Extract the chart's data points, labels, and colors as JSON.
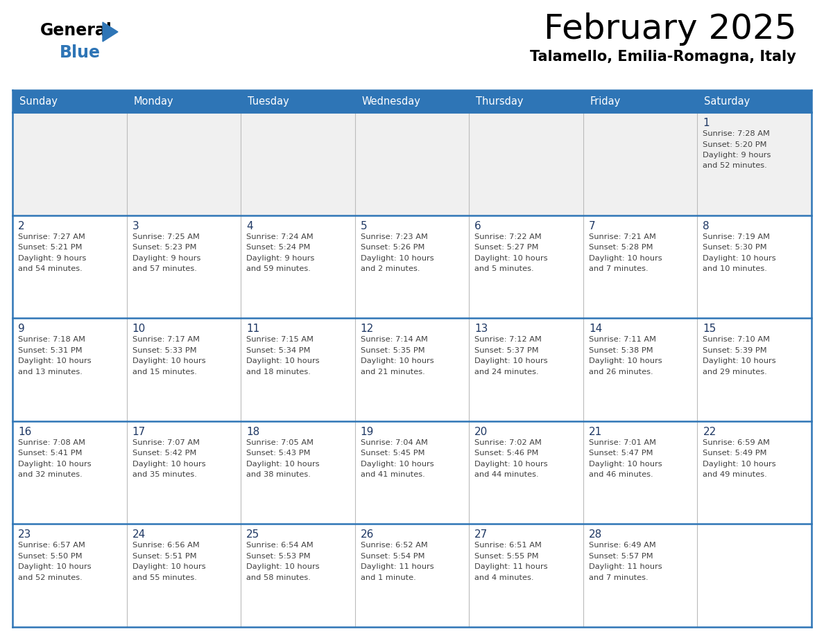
{
  "title": "February 2025",
  "subtitle": "Talamello, Emilia-Romagna, Italy",
  "header_bg_color": "#2E75B6",
  "header_text_color": "#FFFFFF",
  "cell_bg_white": "#FFFFFF",
  "cell_bg_gray": "#F0F0F0",
  "border_color": "#2E75B6",
  "inner_border_color": "#BBBBBB",
  "title_color": "#000000",
  "subtitle_color": "#000000",
  "day_number_color": "#1F3864",
  "cell_text_color": "#404040",
  "days_of_week": [
    "Sunday",
    "Monday",
    "Tuesday",
    "Wednesday",
    "Thursday",
    "Friday",
    "Saturday"
  ],
  "calendar": [
    [
      null,
      null,
      null,
      null,
      null,
      null,
      {
        "day": 1,
        "sunrise": "7:28 AM",
        "sunset": "5:20 PM",
        "daylight": "9 hours\nand 52 minutes."
      }
    ],
    [
      {
        "day": 2,
        "sunrise": "7:27 AM",
        "sunset": "5:21 PM",
        "daylight": "9 hours\nand 54 minutes."
      },
      {
        "day": 3,
        "sunrise": "7:25 AM",
        "sunset": "5:23 PM",
        "daylight": "9 hours\nand 57 minutes."
      },
      {
        "day": 4,
        "sunrise": "7:24 AM",
        "sunset": "5:24 PM",
        "daylight": "9 hours\nand 59 minutes."
      },
      {
        "day": 5,
        "sunrise": "7:23 AM",
        "sunset": "5:26 PM",
        "daylight": "10 hours\nand 2 minutes."
      },
      {
        "day": 6,
        "sunrise": "7:22 AM",
        "sunset": "5:27 PM",
        "daylight": "10 hours\nand 5 minutes."
      },
      {
        "day": 7,
        "sunrise": "7:21 AM",
        "sunset": "5:28 PM",
        "daylight": "10 hours\nand 7 minutes."
      },
      {
        "day": 8,
        "sunrise": "7:19 AM",
        "sunset": "5:30 PM",
        "daylight": "10 hours\nand 10 minutes."
      }
    ],
    [
      {
        "day": 9,
        "sunrise": "7:18 AM",
        "sunset": "5:31 PM",
        "daylight": "10 hours\nand 13 minutes."
      },
      {
        "day": 10,
        "sunrise": "7:17 AM",
        "sunset": "5:33 PM",
        "daylight": "10 hours\nand 15 minutes."
      },
      {
        "day": 11,
        "sunrise": "7:15 AM",
        "sunset": "5:34 PM",
        "daylight": "10 hours\nand 18 minutes."
      },
      {
        "day": 12,
        "sunrise": "7:14 AM",
        "sunset": "5:35 PM",
        "daylight": "10 hours\nand 21 minutes."
      },
      {
        "day": 13,
        "sunrise": "7:12 AM",
        "sunset": "5:37 PM",
        "daylight": "10 hours\nand 24 minutes."
      },
      {
        "day": 14,
        "sunrise": "7:11 AM",
        "sunset": "5:38 PM",
        "daylight": "10 hours\nand 26 minutes."
      },
      {
        "day": 15,
        "sunrise": "7:10 AM",
        "sunset": "5:39 PM",
        "daylight": "10 hours\nand 29 minutes."
      }
    ],
    [
      {
        "day": 16,
        "sunrise": "7:08 AM",
        "sunset": "5:41 PM",
        "daylight": "10 hours\nand 32 minutes."
      },
      {
        "day": 17,
        "sunrise": "7:07 AM",
        "sunset": "5:42 PM",
        "daylight": "10 hours\nand 35 minutes."
      },
      {
        "day": 18,
        "sunrise": "7:05 AM",
        "sunset": "5:43 PM",
        "daylight": "10 hours\nand 38 minutes."
      },
      {
        "day": 19,
        "sunrise": "7:04 AM",
        "sunset": "5:45 PM",
        "daylight": "10 hours\nand 41 minutes."
      },
      {
        "day": 20,
        "sunrise": "7:02 AM",
        "sunset": "5:46 PM",
        "daylight": "10 hours\nand 44 minutes."
      },
      {
        "day": 21,
        "sunrise": "7:01 AM",
        "sunset": "5:47 PM",
        "daylight": "10 hours\nand 46 minutes."
      },
      {
        "day": 22,
        "sunrise": "6:59 AM",
        "sunset": "5:49 PM",
        "daylight": "10 hours\nand 49 minutes."
      }
    ],
    [
      {
        "day": 23,
        "sunrise": "6:57 AM",
        "sunset": "5:50 PM",
        "daylight": "10 hours\nand 52 minutes."
      },
      {
        "day": 24,
        "sunrise": "6:56 AM",
        "sunset": "5:51 PM",
        "daylight": "10 hours\nand 55 minutes."
      },
      {
        "day": 25,
        "sunrise": "6:54 AM",
        "sunset": "5:53 PM",
        "daylight": "10 hours\nand 58 minutes."
      },
      {
        "day": 26,
        "sunrise": "6:52 AM",
        "sunset": "5:54 PM",
        "daylight": "11 hours\nand 1 minute."
      },
      {
        "day": 27,
        "sunrise": "6:51 AM",
        "sunset": "5:55 PM",
        "daylight": "11 hours\nand 4 minutes."
      },
      {
        "day": 28,
        "sunrise": "6:49 AM",
        "sunset": "5:57 PM",
        "daylight": "11 hours\nand 7 minutes."
      },
      null
    ]
  ],
  "logo_general_color": "#000000",
  "logo_blue_color": "#2E75B6",
  "logo_triangle_color": "#2E75B6"
}
